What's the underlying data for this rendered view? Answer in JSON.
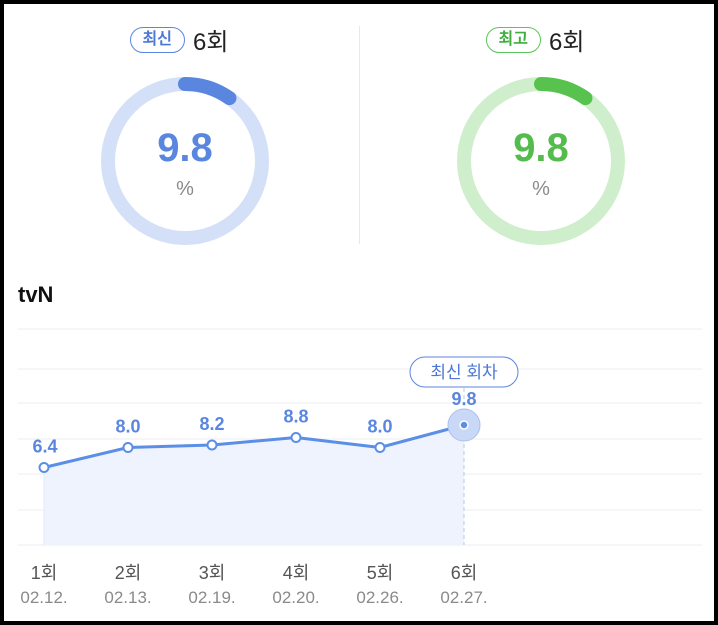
{
  "latest": {
    "badge": "최신",
    "episode": "6회",
    "value": "9.8",
    "unit": "%",
    "fraction": 0.098,
    "color": "#5b86e0",
    "track_color": "#d4e0f8"
  },
  "best": {
    "badge": "최고",
    "episode": "6회",
    "value": "9.8",
    "unit": "%",
    "fraction": 0.098,
    "color": "#57c24e",
    "track_color": "#cfeecb"
  },
  "chart_data": {
    "type": "area",
    "title": "tvN",
    "categories": [
      "1회",
      "2회",
      "3회",
      "4회",
      "5회",
      "6회"
    ],
    "dates": [
      "02.12.",
      "02.13.",
      "02.19.",
      "02.20.",
      "02.26.",
      "02.27."
    ],
    "series": [
      {
        "values": [
          6.4,
          8.0,
          8.2,
          8.8,
          8.0,
          9.8
        ]
      }
    ],
    "data_labels": [
      "6.4",
      "8.0",
      "8.2",
      "8.8",
      "8.0",
      "9.8"
    ],
    "highlight_index": 5,
    "highlight_label": "최신 회차",
    "grid": true,
    "line_color": "#5b8ee6",
    "fill_color": "#eef3fd"
  }
}
